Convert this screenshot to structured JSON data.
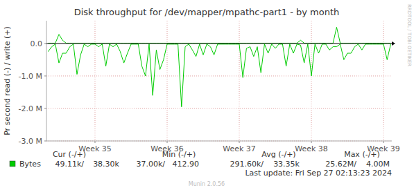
{
  "chart_data": {
    "type": "line",
    "title": "Disk throughput for /dev/mapper/mpathc-part1 - by month",
    "y_label": "Pr second read (-) / write (+)",
    "x": [
      34.35,
      34.4,
      34.45,
      34.5,
      34.55,
      34.6,
      34.65,
      34.7,
      34.75,
      34.8,
      34.85,
      34.9,
      34.95,
      35.0,
      35.05,
      35.1,
      35.15,
      35.2,
      35.25,
      35.3,
      35.35,
      35.4,
      35.45,
      35.5,
      35.55,
      35.6,
      35.65,
      35.7,
      35.75,
      35.8,
      35.85,
      35.9,
      35.95,
      36.0,
      36.05,
      36.1,
      36.15,
      36.2,
      36.25,
      36.3,
      36.35,
      36.4,
      36.45,
      36.5,
      36.55,
      36.6,
      36.65,
      36.7,
      36.75,
      36.8,
      36.85,
      36.9,
      36.95,
      37.0,
      37.05,
      37.1,
      37.15,
      37.2,
      37.25,
      37.3,
      37.35,
      37.4,
      37.45,
      37.5,
      37.55,
      37.6,
      37.65,
      37.7,
      37.75,
      37.8,
      37.85,
      37.9,
      37.95,
      38.0,
      38.05,
      38.1,
      38.15,
      38.2,
      38.25,
      38.3,
      38.35,
      38.4,
      38.45,
      38.5,
      38.55,
      38.6,
      38.65,
      38.7,
      38.75,
      38.8,
      38.85,
      38.9,
      38.95,
      39.0,
      39.05,
      39.1
    ],
    "series": [
      {
        "name": "Bytes",
        "color": "#00cc00",
        "values": [
          -250000,
          -100000,
          -20000,
          -600000,
          -300000,
          -300000,
          -100000,
          -20000,
          -950000,
          -350000,
          -20000,
          -100000,
          -20000,
          -20000,
          -100000,
          -20000,
          -700000,
          -20000,
          -100000,
          -20000,
          -250000,
          -600000,
          -300000,
          -20000,
          -20000,
          -20000,
          -700000,
          -1000000,
          -20000,
          -1600000,
          -200000,
          -800000,
          -500000,
          -20000,
          -20000,
          -20000,
          -20000,
          -1950000,
          -100000,
          -20000,
          -200000,
          -400000,
          -20000,
          -350000,
          -20000,
          -100000,
          -350000,
          -20000,
          -20000,
          -20000,
          -20000,
          -20000,
          -20000,
          -20000,
          -1050000,
          -150000,
          -100000,
          -400000,
          -100000,
          -900000,
          -20000,
          -300000,
          -20000,
          -150000,
          -20000,
          -20000,
          -700000,
          -20000,
          -300000,
          -20000,
          -50000,
          -600000,
          -20000,
          -1000000,
          -20000,
          -300000,
          -20000,
          -20000,
          -200000,
          -100000,
          -100000,
          -20000,
          -500000,
          -300000,
          -300000,
          -100000,
          -20000,
          -200000,
          -20000,
          -20000,
          -20000,
          -20000,
          -20000,
          -20000,
          -500000,
          -20000
        ]
      },
      {
        "color": "#00cc00",
        "values": [
          10000,
          10000,
          10000,
          280000,
          100000,
          10000,
          10000,
          10000,
          10000,
          10000,
          10000,
          10000,
          10000,
          10000,
          10000,
          10000,
          10000,
          10000,
          10000,
          10000,
          10000,
          10000,
          10000,
          10000,
          10000,
          10000,
          10000,
          10000,
          10000,
          10000,
          10000,
          10000,
          10000,
          10000,
          10000,
          10000,
          10000,
          10000,
          10000,
          10000,
          10000,
          10000,
          10000,
          10000,
          10000,
          10000,
          10000,
          10000,
          10000,
          10000,
          10000,
          10000,
          10000,
          10000,
          10000,
          10000,
          10000,
          10000,
          10000,
          10000,
          10000,
          10000,
          10000,
          10000,
          10000,
          10000,
          10000,
          10000,
          10000,
          10000,
          100000,
          10000,
          10000,
          10000,
          10000,
          10000,
          10000,
          10000,
          10000,
          10000,
          500000,
          10000,
          10000,
          10000,
          10000,
          10000,
          10000,
          10000,
          10000,
          10000,
          10000,
          10000,
          10000,
          10000,
          10000,
          10000
        ]
      }
    ],
    "xlim": [
      34.327,
      39.115
    ],
    "xticks": [
      {
        "value": 35,
        "label": "Week 35"
      },
      {
        "value": 36,
        "label": "Week 36"
      },
      {
        "value": 37,
        "label": "Week 37"
      },
      {
        "value": 38,
        "label": "Week 38"
      },
      {
        "value": 39,
        "label": "Week 39"
      }
    ],
    "ylim": [
      -3000000,
      700000
    ],
    "yticks": [
      {
        "value": 0,
        "label": "0.0"
      },
      {
        "value": -1000000,
        "label": "-1.0 M"
      },
      {
        "value": -2000000,
        "label": "-2.0 M"
      },
      {
        "value": -3000000,
        "label": "-3.0 M"
      }
    ],
    "grid": true,
    "legend_table": {
      "columns": [
        "Cur (-/+)",
        "Min (-/+)",
        "Avg (-/+)",
        "Max (-/+)"
      ],
      "cells": [
        "49.11k/",
        "38.30k",
        "37.00k/",
        "412.90",
        "291.60k/",
        "33.35k",
        "25.62M/",
        "4.00M"
      ]
    },
    "last_update": "Last update: Fri Sep 27 02:13:23 2024",
    "watermark": "RRDTOOL / TOBI OETIKER",
    "footer": "Munin 2.0.56"
  }
}
